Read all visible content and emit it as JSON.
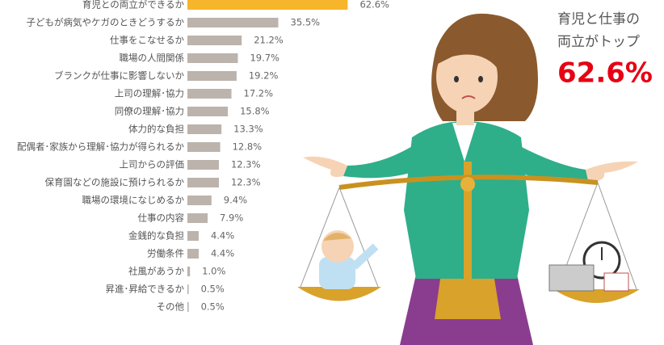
{
  "chart_data": {
    "type": "bar",
    "orientation": "horizontal",
    "categories": [
      "育児との両立ができるか",
      "子どもが病気やケガのときどうするか",
      "仕事をこなせるか",
      "職場の人間関係",
      "ブランクが仕事に影響しないか",
      "上司の理解･協力",
      "同僚の理解･協力",
      "体力的な負担",
      "配偶者･家族から理解･協力が得られるか",
      "上司からの評価",
      "保育園などの施設に預けられるか",
      "職場の環境になじめるか",
      "仕事の内容",
      "金銭的な負担",
      "労働条件",
      "社風があうか",
      "昇進･昇給できるか",
      "その他"
    ],
    "values": [
      62.6,
      35.5,
      21.2,
      19.7,
      19.2,
      17.2,
      15.8,
      13.3,
      12.8,
      12.3,
      12.3,
      9.4,
      7.9,
      4.4,
      4.4,
      1.0,
      0.5,
      0.5
    ],
    "value_labels": [
      "62.6%",
      "35.5%",
      "21.2%",
      "19.7%",
      "19.2%",
      "17.2%",
      "15.8%",
      "13.3%",
      "12.8%",
      "12.3%",
      "12.3%",
      "9.4%",
      "7.9%",
      "4.4%",
      "4.4%",
      "1.0%",
      "0.5%",
      "0.5%"
    ],
    "colors": [
      "#f7b52c",
      "#bbb3ac",
      "#bbb3ac",
      "#bbb3ac",
      "#bbb3ac",
      "#bbb3ac",
      "#bbb3ac",
      "#bbb3ac",
      "#bbb3ac",
      "#bbb3ac",
      "#bbb3ac",
      "#bbb3ac",
      "#bbb3ac",
      "#bbb3ac",
      "#bbb3ac",
      "#bbb3ac",
      "#bbb3ac",
      "#bbb3ac"
    ],
    "annotations": [
      "育児と仕事の",
      "両立がトップ",
      "62.6%"
    ],
    "annotation_colors": [
      "#555555",
      "#555555",
      "#e60012"
    ]
  }
}
